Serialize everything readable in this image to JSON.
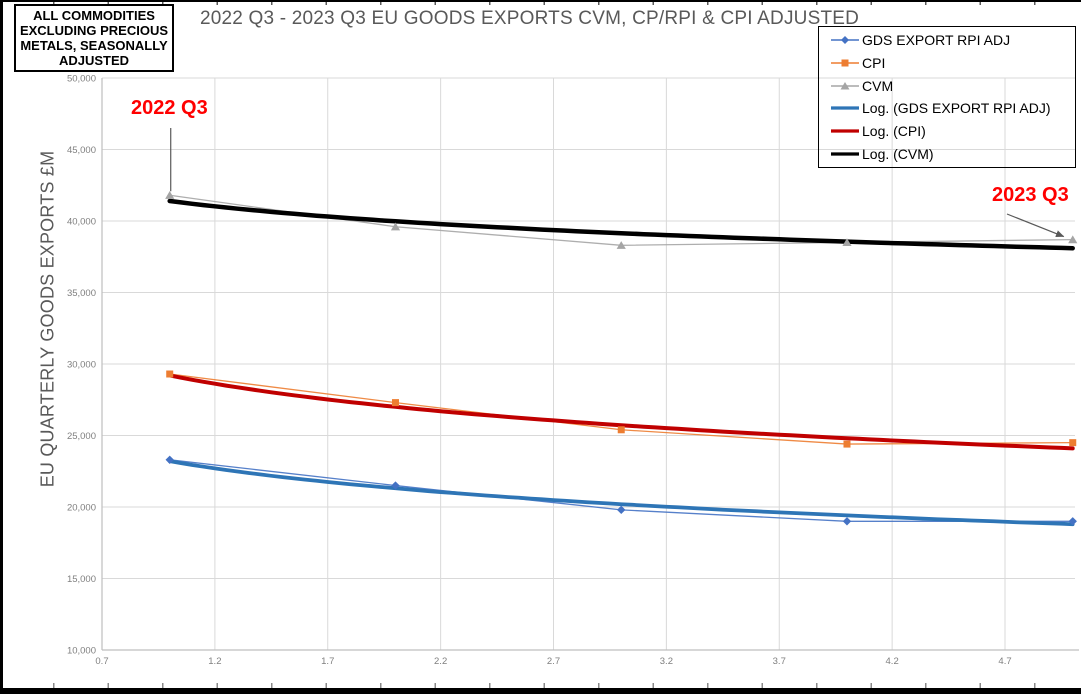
{
  "info_box": {
    "text": "ALL COMMODITIES EXCLUDING PRECIOUS METALS, SEASONALLY ADJUSTED"
  },
  "title": "2022 Q3 - 2023 Q3 EU GOODS EXPORTS CVM, CP/RPI & CPI ADJUSTED",
  "y_axis_title": "EU QUARTERLY GOODS EXPORTS £M",
  "annotations": [
    {
      "label": "2022 Q3",
      "target": "first-data-point",
      "color": "#FF0000"
    },
    {
      "label": "2023 Q3",
      "target": "last-data-point",
      "color": "#FF0000"
    }
  ],
  "legend": [
    {
      "label": "GDS EXPORT RPI ADJ",
      "type": "series",
      "marker": "diamond",
      "color": "#4472C4"
    },
    {
      "label": "CPI",
      "type": "series",
      "marker": "square",
      "color": "#ED7D31"
    },
    {
      "label": "CVM",
      "type": "series",
      "marker": "triangle",
      "color": "#A5A5A5"
    },
    {
      "label": "Log. (GDS EXPORT RPI ADJ)",
      "type": "trendline",
      "marker": "none",
      "color": "#2E75B6"
    },
    {
      "label": "Log. (CPI)",
      "type": "trendline",
      "marker": "none",
      "color": "#C00000"
    },
    {
      "label": "Log. (CVM)",
      "type": "trendline",
      "marker": "none",
      "color": "#000000"
    }
  ],
  "chart_data": {
    "type": "line",
    "title": "2022 Q3 - 2023 Q3 EU GOODS EXPORTS CVM, CP/RPI & CPI ADJUSTED",
    "xlabel": "",
    "ylabel": "EU QUARTERLY GOODS EXPORTS £M",
    "x": [
      1,
      2,
      3,
      4,
      5
    ],
    "series": [
      {
        "name": "GDS EXPORT RPI ADJ",
        "color": "#4472C4",
        "marker": "diamond",
        "values": [
          23300,
          21500,
          19800,
          19000,
          19000
        ]
      },
      {
        "name": "CPI",
        "color": "#ED7D31",
        "marker": "square",
        "values": [
          29300,
          27300,
          25400,
          24400,
          24500
        ]
      },
      {
        "name": "CVM",
        "color": "#A5A5A5",
        "marker": "triangle",
        "values": [
          41800,
          39600,
          38300,
          38500,
          38700
        ]
      }
    ],
    "trendlines": [
      {
        "name": "Log. (GDS EXPORT RPI ADJ)",
        "fit": "logarithmic",
        "color": "#2E75B6",
        "width": 3.75,
        "value_at_x1": 23200,
        "value_at_x5": 18800
      },
      {
        "name": "Log. (CPI)",
        "fit": "logarithmic",
        "color": "#C00000",
        "width": 4,
        "value_at_x1": 29200,
        "value_at_x5": 24100
      },
      {
        "name": "Log. (CVM)",
        "fit": "logarithmic",
        "color": "#000000",
        "width": 4.5,
        "value_at_x1": 41400,
        "value_at_x5": 38100
      }
    ],
    "x_ticks": [
      "0.7",
      "1.2",
      "1.7",
      "2.2",
      "2.7",
      "3.2",
      "3.7",
      "4.2",
      "4.7"
    ],
    "y_ticks": [
      "10,000",
      "15,000",
      "20,000",
      "25,000",
      "30,000",
      "35,000",
      "40,000",
      "45,000",
      "50,000"
    ],
    "xlim": [
      0.7,
      5.01
    ],
    "ylim": [
      10000,
      50000
    ],
    "grid": true,
    "legend_position": "top-right"
  }
}
